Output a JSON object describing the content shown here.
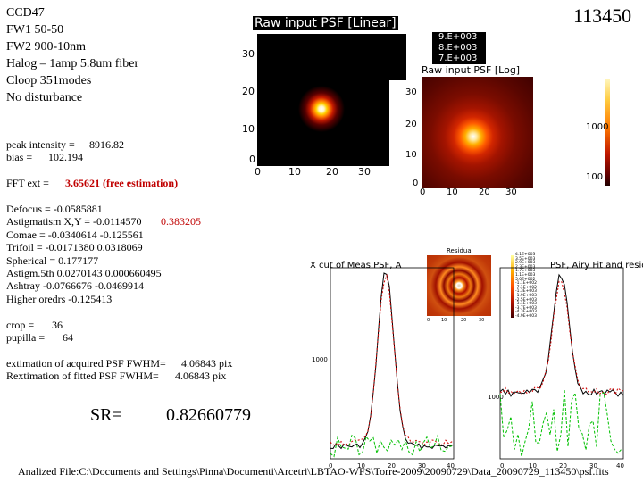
{
  "header": {
    "camera": "CCD47",
    "fw1": "FW1 50-50",
    "fw2": "FW2 900-10nm",
    "source": "Halog – 1amp 5.8um fiber",
    "loop": "Cloop 351modes",
    "disturbance": "No disturbance",
    "frame_id": "113450"
  },
  "stats": {
    "peak_label": "peak intensity =",
    "peak_value": "8916.82",
    "bias_label": "bias =",
    "bias_value": "102.194",
    "fft_label": "FFT ext =",
    "fft_value": "3.65621  (free estimation)"
  },
  "aberrations": {
    "defocus": "Defocus  =  -0.0585881",
    "astig_label": "Astigmatism X,Y =  -0.0114570",
    "astig_y": "0.383205",
    "coma": "Comae =  -0.0340614   -0.125561",
    "trifoil": "Trifoil =  -0.0171380   0.0318069",
    "spherical": "Spherical =      0.177177",
    "astig5": "Astigm.5th    0.0270143  0.000660495",
    "ashtray": "Ashtray  -0.0766676  -0.0469914",
    "higher": "Higher oredrs   -0.125413"
  },
  "crop": {
    "crop_label": "crop =",
    "crop_value": "36",
    "pupilla_label": "pupilla =",
    "pupilla_value": "64"
  },
  "fwhm": {
    "acquired_label": "extimation of acquired PSF FWHM=",
    "acquired_value": "4.06843 pix",
    "fitted_label": "Rextimation of fitted PSF FWHM=",
    "fitted_value": "4.06843 pix"
  },
  "strehl": {
    "label": "SR=",
    "value": "0.82660779"
  },
  "footer": {
    "analyzed_file": "Analized File:C:\\Documents and Settings\\Pinna\\Documenti\\Arcetri\\LBTAO-WFS\\Torre-2009\\20090729\\Data_20090729_113450\\psf.fits"
  },
  "plots": {
    "raw_linear": {
      "title": "Raw input PSF [Linear]",
      "y_ticks": [
        "30",
        "20",
        "10",
        "0"
      ],
      "x_ticks": [
        "0",
        "10",
        "20",
        "30"
      ],
      "colorbar_labels": [
        "9.E+003",
        "8.E+003",
        "7.E+003"
      ],
      "peak_value": 8916.82
    },
    "raw_log": {
      "title": "Raw input PSF [Log]",
      "y_ticks": [
        "30",
        "20",
        "10",
        "0"
      ],
      "x_ticks": [
        "0",
        "10",
        "20",
        "30"
      ],
      "colorbar_labels": [
        "1000",
        "100"
      ]
    },
    "residual": {
      "title": "Residual",
      "x_ticks": [
        "0",
        "10",
        "20",
        "30"
      ],
      "colorbar_labels": [
        "4.1E+003",
        "3.5E+003",
        "2.9E+003",
        "2.3E+003",
        "1.7E+003",
        "1.1E+003",
        "5.0E+002",
        "-1.1E+002",
        "-7.1E+002",
        "-1.3E+003",
        "-1.9E+003",
        "-2.5E+003",
        "-3.1E+003",
        "-3.7E+003",
        "-4.3E+003",
        "-4.9E+003"
      ]
    },
    "x_cut": {
      "title": "X cut of Meas PSF, A",
      "y_tick_label": "1000",
      "x_ticks": [
        "0",
        "10",
        "20",
        "30",
        "40"
      ]
    },
    "airy_fit": {
      "title": "PSF, Airy Fit and residu",
      "y_tick_label": "1000",
      "x_ticks": [
        "0",
        "10",
        "20",
        "30",
        "40"
      ]
    }
  }
}
